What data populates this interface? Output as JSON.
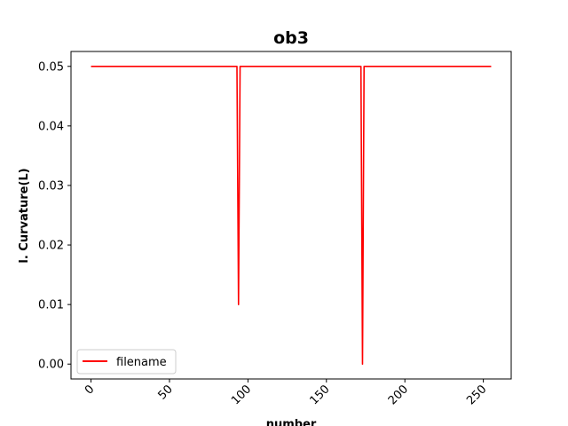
{
  "chart_data": {
    "type": "line",
    "title": "ob3",
    "xlabel": "number",
    "ylabel": "l. Curvature(L)",
    "xlim": [
      -12.75,
      267.75
    ],
    "ylim": [
      -0.0025,
      0.0525
    ],
    "x_ticks": [
      0,
      50,
      100,
      150,
      200,
      250
    ],
    "x_tick_labels": [
      "0",
      "50",
      "100",
      "150",
      "200",
      "250"
    ],
    "y_ticks": [
      0.0,
      0.01,
      0.02,
      0.03,
      0.04,
      0.05
    ],
    "y_tick_labels": [
      "0.00",
      "0.01",
      "0.02",
      "0.03",
      "0.04",
      "0.05"
    ],
    "grid": false,
    "legend_position": "lower-left",
    "series": [
      {
        "name": "filename",
        "color": "#ff0000",
        "x": [
          0,
          93,
          94,
          95,
          172,
          173,
          174,
          255
        ],
        "y": [
          0.05,
          0.05,
          0.01,
          0.05,
          0.05,
          0.0,
          0.05,
          0.05
        ]
      }
    ]
  }
}
